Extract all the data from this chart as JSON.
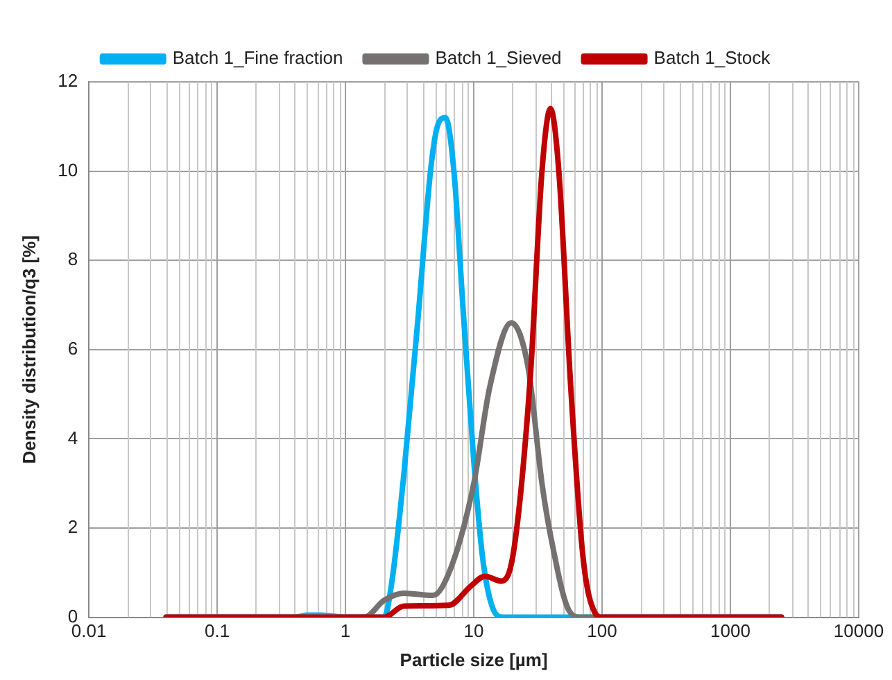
{
  "chart_data": {
    "type": "line",
    "xlabel": "Particle size [µm]",
    "ylabel": "Density distribution/q3 [%]",
    "log": "x",
    "xlim": [
      0.01,
      10000
    ],
    "xticks": [
      0.01,
      0.1,
      1,
      10,
      100,
      1000,
      10000
    ],
    "ylim": [
      0,
      12
    ],
    "yticks": [
      0,
      2,
      4,
      6,
      8,
      10,
      12
    ],
    "grid": true,
    "legend": "top",
    "marker": "none",
    "line_style": "solid",
    "series": [
      {
        "name": "Batch 1_Fine fraction",
        "color": "#00b0f0",
        "x": [
          0.04,
          0.4,
          0.5,
          0.65,
          1.0,
          2.0,
          2.3,
          2.85,
          3.7,
          4.6,
          5.2,
          6.0,
          7.0,
          8.3,
          10,
          11.7,
          13.8,
          17,
          100,
          2500
        ],
        "values": [
          0,
          0,
          0.05,
          0.05,
          0,
          0,
          0.8,
          3.2,
          6.8,
          10.0,
          11.0,
          11.2,
          10.0,
          6.8,
          3.5,
          1.35,
          0.27,
          0,
          0,
          0
        ]
      },
      {
        "name": "Batch 1_Sieved",
        "color": "#767171",
        "x": [
          0.04,
          1.0,
          1.4,
          2.0,
          2.85,
          4.8,
          6.7,
          10,
          13.3,
          19.6,
          26.5,
          34,
          40.5,
          55,
          68,
          2500
        ],
        "values": [
          0,
          0,
          0,
          0.38,
          0.54,
          0.49,
          1.14,
          3.0,
          5.15,
          6.6,
          5.6,
          3.0,
          1.7,
          0.16,
          0,
          0
        ]
      },
      {
        "name": "Batch 1_Stock",
        "color": "#c00000",
        "x": [
          0.04,
          1.0,
          2.0,
          2.85,
          6.4,
          9.5,
          12.2,
          16.5,
          20.4,
          27.6,
          34,
          39.6,
          46,
          57,
          71,
          88,
          100,
          2500
        ],
        "values": [
          0,
          0,
          0,
          0.25,
          0.27,
          0.7,
          0.92,
          0.81,
          1.46,
          5.4,
          10.0,
          11.4,
          10.0,
          5.15,
          1.35,
          0.1,
          0,
          0
        ]
      }
    ]
  }
}
